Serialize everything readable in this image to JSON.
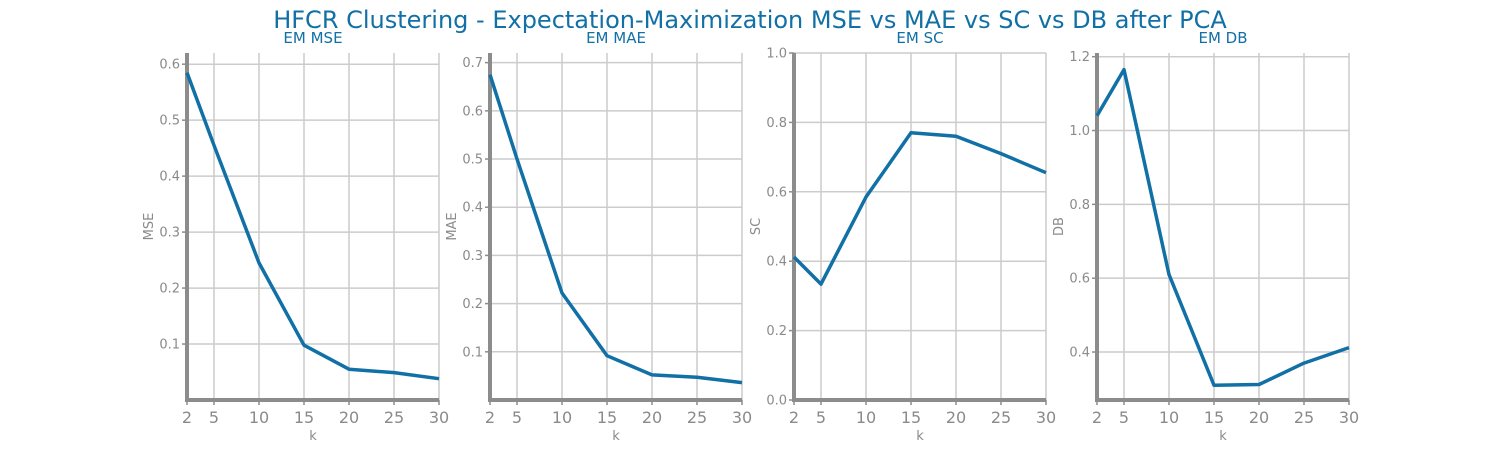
{
  "figure": {
    "title": "HFCR Clustering - Expectation-Maximization MSE vs MAE vs SC vs DB after PCA",
    "colors": {
      "title": "#1170a5",
      "line": "#1170a5",
      "axis": "#8c8c8c",
      "grid": "#cccccc",
      "tick_text": "#8a8a8a"
    }
  },
  "chart_data": [
    {
      "type": "line",
      "title": "EM MSE",
      "xlabel": "k",
      "ylabel": "MSE",
      "x": [
        2,
        5,
        10,
        15,
        20,
        25,
        30
      ],
      "xticks": [
        2,
        5,
        10,
        15,
        20,
        25,
        30
      ],
      "xlim": [
        2,
        30
      ],
      "ylim": [
        0.0,
        0.62
      ],
      "yticks": [
        0.1,
        0.2,
        0.3,
        0.4,
        0.5,
        0.6
      ],
      "ytick_labels": [
        "0.1",
        "0.2",
        "0.3",
        "0.4",
        "0.5",
        "0.6"
      ],
      "grid": true,
      "series": [
        {
          "values": [
            0.585,
            0.455,
            0.245,
            0.098,
            0.055,
            0.049,
            0.038
          ]
        }
      ]
    },
    {
      "type": "line",
      "title": "EM MAE",
      "xlabel": "k",
      "ylabel": "MAE",
      "x": [
        2,
        5,
        10,
        15,
        20,
        25,
        30
      ],
      "xticks": [
        2,
        5,
        10,
        15,
        20,
        25,
        30
      ],
      "xlim": [
        2,
        30
      ],
      "ylim": [
        0.0,
        0.72
      ],
      "yticks": [
        0.1,
        0.2,
        0.3,
        0.4,
        0.5,
        0.6,
        0.7
      ],
      "ytick_labels": [
        "0.1",
        "0.2",
        "0.3",
        "0.4",
        "0.5",
        "0.6",
        "0.7"
      ],
      "grid": true,
      "series": [
        {
          "values": [
            0.675,
            0.5,
            0.222,
            0.092,
            0.052,
            0.047,
            0.036
          ]
        }
      ]
    },
    {
      "type": "line",
      "title": "EM SC",
      "xlabel": "k",
      "ylabel": "SC",
      "x": [
        2,
        5,
        10,
        15,
        20,
        25,
        30
      ],
      "xticks": [
        2,
        5,
        10,
        15,
        20,
        25,
        30
      ],
      "xlim": [
        2,
        30
      ],
      "ylim": [
        0.0,
        1.0
      ],
      "yticks": [
        0.0,
        0.2,
        0.4,
        0.6,
        0.8,
        1.0
      ],
      "ytick_labels": [
        "0.0",
        "0.2",
        "0.4",
        "0.6",
        "0.8",
        "1.0"
      ],
      "grid": true,
      "series": [
        {
          "values": [
            0.412,
            0.334,
            0.585,
            0.77,
            0.76,
            0.71,
            0.655
          ]
        }
      ]
    },
    {
      "type": "line",
      "title": "EM DB",
      "xlabel": "k",
      "ylabel": "DB",
      "x": [
        2,
        5,
        10,
        15,
        20,
        25,
        30
      ],
      "xticks": [
        2,
        5,
        10,
        15,
        20,
        25,
        30
      ],
      "xlim": [
        2,
        30
      ],
      "ylim": [
        0.27,
        1.21
      ],
      "yticks": [
        0.4,
        0.6,
        0.8,
        1.0,
        1.2
      ],
      "ytick_labels": [
        "0.4",
        "0.6",
        "0.8",
        "1.0",
        "1.2"
      ],
      "grid": true,
      "series": [
        {
          "values": [
            1.04,
            1.165,
            0.61,
            0.31,
            0.312,
            0.37,
            0.412
          ]
        }
      ]
    }
  ]
}
